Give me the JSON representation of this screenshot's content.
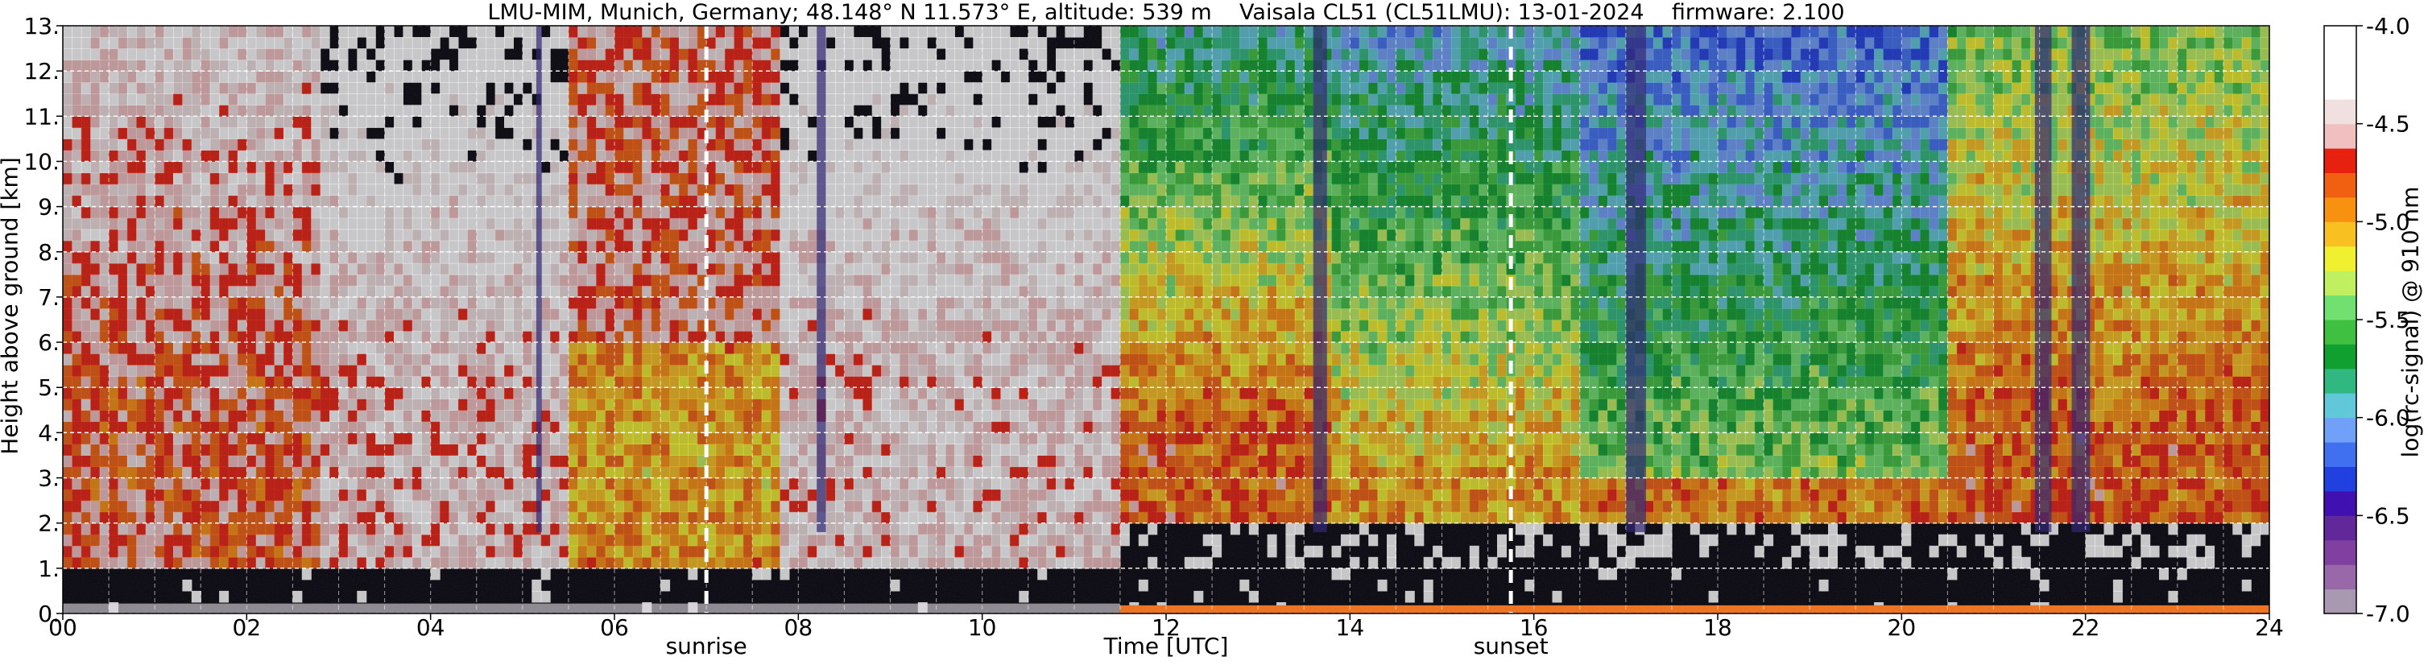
{
  "chart_data": {
    "type": "heatmap",
    "title": "LMU-MIM, Munich, Germany; 48.148° N 11.573° E, altitude: 539 m    Vaisala CL51 (CL51LMU): 13-01-2024    firmware: 2.100",
    "xlabel": "Time [UTC]",
    "ylabel": "Height above ground [km]",
    "xlim": [
      0,
      24
    ],
    "ylim": [
      0,
      13
    ],
    "xticks": [
      "00",
      "02",
      "04",
      "06",
      "08",
      "10",
      "12",
      "14",
      "16",
      "18",
      "20",
      "22",
      "24"
    ],
    "yticks": [
      "0.",
      "1.",
      "2.",
      "3.",
      "4.",
      "5.",
      "6.",
      "7.",
      "8.",
      "9.",
      "10.",
      "11.",
      "12.",
      "13."
    ],
    "grid": true,
    "annotations": [
      {
        "x": 7.0,
        "label": "sunrise"
      },
      {
        "x": 15.75,
        "label": "sunset"
      }
    ],
    "colorbar": {
      "label": "log(rc-signal) @ 910 nm",
      "range": [
        -7.0,
        -4.0
      ],
      "ticks": [
        "-4.0",
        "-4.5",
        "-5.0",
        "-5.5",
        "-6.0",
        "-6.5",
        "-7.0"
      ],
      "colors": [
        "#a898b0",
        "#9868a8",
        "#8040a0",
        "#602898",
        "#4010b0",
        "#2040e0",
        "#4070f0",
        "#70a0f8",
        "#60c8d8",
        "#30b880",
        "#10a030",
        "#40c040",
        "#70e070",
        "#c0f060",
        "#f0f030",
        "#f8c020",
        "#f89010",
        "#f06010",
        "#e82010",
        "#f0c0c0",
        "#f0e0e0",
        "#ffffff",
        "#ffffff",
        "#ffffff"
      ]
    }
  }
}
